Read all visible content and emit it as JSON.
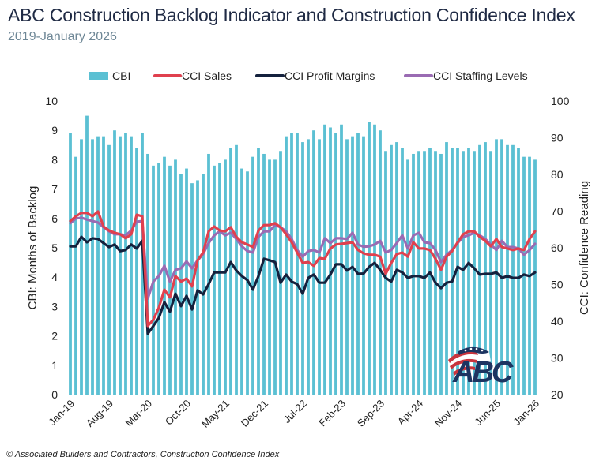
{
  "header": {
    "title": "ABC Construction Backlog Indicator and Construction Confidence Index",
    "subtitle": "2019-January 2026"
  },
  "footer": "© Associated Builders and Contractors, Construction Confidence Index",
  "logo": {
    "text": "ABC",
    "icon": "abc-flag-logo"
  },
  "colors": {
    "cbi": "#5bc0d3",
    "sales": "#e0404e",
    "profit": "#14213d",
    "staffing": "#9a6bb3"
  },
  "chart_data": {
    "type": "bar+line",
    "title": "ABC Construction Backlog Indicator and Construction Confidence Index",
    "subtitle": "2019-January 2026",
    "legend": [
      "CBI",
      "CCI Sales",
      "CCI Profit Margins",
      "CCI Staffing Levels"
    ],
    "legend_position": "top",
    "ylabel_left": "CBI: Months of Backlog",
    "ylabel_right": "CCI: Confidence Reading",
    "ylim_left": [
      0,
      10
    ],
    "ylim_right": [
      20,
      100
    ],
    "yticks_left": [
      "0",
      "1",
      "2",
      "3",
      "4",
      "5",
      "6",
      "7",
      "8",
      "9",
      "10"
    ],
    "yticks_right": [
      "20",
      "30",
      "40",
      "50",
      "60",
      "70",
      "80",
      "90",
      "100"
    ],
    "x_start": "Jan-19",
    "x_end": "Jan-26",
    "xtick_labels": [
      {
        "index": 0,
        "label": "Jan-19"
      },
      {
        "index": 7,
        "label": "Aug-19"
      },
      {
        "index": 14,
        "label": "Mar-20"
      },
      {
        "index": 21,
        "label": "Oct-20"
      },
      {
        "index": 28,
        "label": "May-21"
      },
      {
        "index": 35,
        "label": "Dec-21"
      },
      {
        "index": 42,
        "label": "Jul-22"
      },
      {
        "index": 49,
        "label": "Feb-23"
      },
      {
        "index": 56,
        "label": "Sep-23"
      },
      {
        "index": 63,
        "label": "Apr-24"
      },
      {
        "index": 70,
        "label": "Nov-24"
      },
      {
        "index": 77,
        "label": "Jun-25"
      },
      {
        "index": 84,
        "label": "Jan-26"
      }
    ],
    "series": [
      {
        "name": "CBI",
        "type": "bar",
        "axis": "left",
        "values": [
          8.9,
          8.1,
          8.7,
          9.5,
          8.7,
          8.8,
          8.8,
          8.5,
          9.0,
          8.8,
          8.9,
          8.8,
          8.4,
          8.9,
          8.2,
          7.8,
          7.9,
          8.1,
          7.8,
          8.0,
          7.5,
          7.7,
          7.2,
          7.3,
          7.5,
          8.2,
          7.8,
          7.9,
          8.0,
          8.4,
          8.5,
          7.7,
          7.6,
          8.1,
          8.4,
          8.2,
          8.0,
          8.0,
          8.3,
          8.8,
          8.9,
          8.9,
          8.6,
          8.7,
          9.0,
          8.7,
          9.2,
          9.1,
          8.9,
          9.2,
          8.7,
          8.8,
          8.9,
          8.8,
          9.3,
          9.2,
          9.0,
          8.3,
          8.5,
          8.6,
          8.4,
          8.0,
          8.2,
          8.3,
          8.3,
          8.4,
          8.3,
          8.2,
          8.6,
          8.4,
          8.4,
          8.3,
          8.4,
          8.3,
          8.5,
          8.6,
          8.3,
          8.7,
          8.7,
          8.5,
          8.5,
          8.4,
          8.1,
          8.1,
          8.0
        ]
      },
      {
        "name": "CCI Sales",
        "type": "line",
        "axis": "right",
        "values": [
          67.3,
          68.6,
          69.5,
          69.5,
          68.6,
          69.9,
          65.8,
          64.7,
          64.1,
          63.7,
          62.6,
          63.7,
          69.0,
          68.6,
          38.7,
          40.4,
          43.7,
          48.6,
          46.5,
          52.3,
          50.8,
          51.6,
          49.5,
          56.6,
          58.7,
          64.5,
          65.8,
          64.7,
          64.5,
          65.6,
          63.0,
          61.5,
          60.9,
          60.2,
          64.7,
          66.2,
          66.2,
          66.7,
          65.6,
          63.7,
          61.5,
          58.7,
          55.9,
          56.1,
          55.1,
          57.2,
          57.0,
          59.8,
          60.9,
          61.1,
          61.3,
          61.5,
          59.4,
          58.5,
          58.1,
          58.1,
          57.6,
          52.9,
          55.9,
          58.3,
          58.7,
          57.6,
          61.5,
          59.8,
          59.8,
          59.4,
          57.0,
          54.0,
          57.6,
          59.1,
          61.5,
          63.7,
          64.5,
          64.5,
          63.0,
          61.9,
          60.4,
          62.4,
          60.2,
          59.8,
          59.4,
          59.8,
          59.4,
          62.4,
          64.5
        ]
      },
      {
        "name": "CCI Profit Margins",
        "type": "line",
        "axis": "right",
        "values": [
          60.4,
          60.4,
          63.0,
          61.5,
          62.6,
          62.4,
          61.3,
          60.2,
          60.9,
          59.1,
          59.4,
          60.9,
          59.8,
          61.9,
          36.6,
          38.7,
          40.9,
          45.2,
          42.6,
          47.5,
          44.1,
          46.9,
          43.2,
          48.4,
          47.3,
          50.1,
          53.3,
          53.3,
          53.3,
          56.1,
          53.8,
          52.3,
          51.2,
          48.6,
          52.3,
          57.0,
          56.6,
          56.1,
          50.5,
          52.7,
          50.8,
          50.1,
          47.5,
          51.8,
          52.7,
          50.5,
          50.5,
          52.7,
          55.5,
          55.5,
          53.8,
          54.8,
          52.9,
          53.0,
          54.8,
          55.9,
          54.0,
          51.8,
          50.8,
          54.0,
          53.3,
          51.8,
          52.3,
          52.3,
          51.8,
          53.3,
          50.5,
          49.0,
          50.5,
          50.8,
          54.8,
          54.0,
          55.9,
          54.4,
          52.7,
          52.9,
          52.9,
          53.3,
          51.8,
          52.3,
          51.8,
          51.8,
          52.7,
          52.3,
          53.3
        ]
      },
      {
        "name": "CCI Staffing Levels",
        "type": "line",
        "axis": "right",
        "values": [
          66.7,
          68.0,
          68.2,
          67.7,
          67.3,
          66.9,
          65.6,
          64.5,
          63.7,
          63.7,
          63.4,
          64.7,
          67.1,
          67.3,
          46.2,
          50.8,
          52.3,
          55.1,
          50.8,
          54.0,
          54.4,
          56.3,
          54.4,
          56.6,
          58.3,
          61.3,
          63.4,
          64.5,
          63.4,
          64.1,
          62.4,
          60.4,
          59.1,
          58.7,
          63.0,
          64.5,
          64.5,
          66.2,
          65.6,
          64.5,
          62.4,
          59.4,
          57.6,
          59.1,
          59.4,
          58.7,
          62.6,
          61.3,
          62.6,
          62.6,
          62.4,
          64.1,
          60.9,
          60.3,
          60.4,
          60.9,
          61.9,
          58.7,
          59.4,
          61.3,
          63.4,
          59.8,
          63.4,
          64.1,
          61.5,
          61.3,
          59.4,
          56.1,
          58.1,
          59.4,
          61.3,
          63.0,
          63.4,
          64.1,
          63.4,
          62.4,
          60.9,
          59.4,
          61.9,
          60.2,
          60.2,
          59.8,
          58.1,
          59.4,
          61.1
        ]
      }
    ]
  }
}
